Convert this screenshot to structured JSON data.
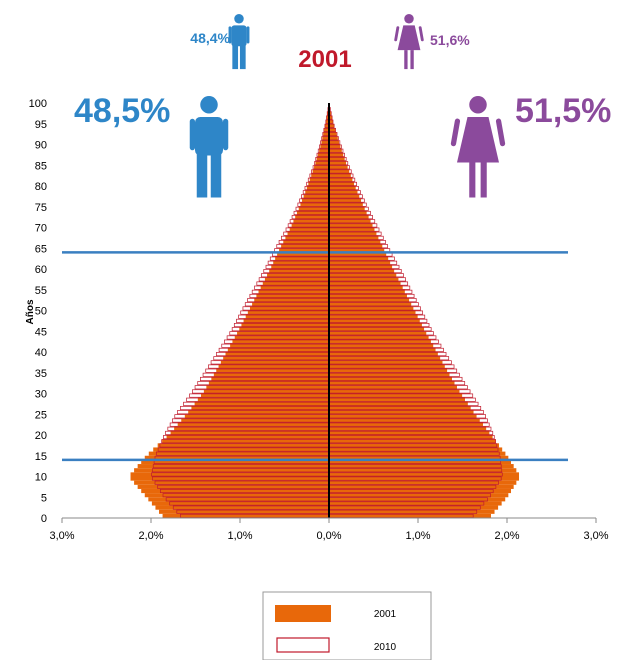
{
  "chart_data": {
    "type": "bar",
    "orientation": "horizontal-pyramid",
    "title": "2001",
    "ylabel": "Años",
    "x_ticks": [
      "3,0%",
      "2,0%",
      "1,0%",
      "0,0%",
      "1,0%",
      "2,0%",
      "3,0%"
    ],
    "y_ticks": [
      "100",
      "95",
      "90",
      "85",
      "80",
      "75",
      "70",
      "65",
      "60",
      "55",
      "50",
      "45",
      "40",
      "35",
      "30",
      "25",
      "20",
      "15",
      "10",
      "5",
      "0"
    ],
    "xlim": [
      -3,
      3
    ],
    "ylim": [
      0,
      100
    ],
    "reference_lines_age": [
      64,
      14
    ],
    "gender_labels": {
      "male_2001": "48,5%",
      "female_2001": "51,5%",
      "male_2010": "48,4%",
      "female_2010": "51,6%"
    },
    "series": [
      {
        "name": "2001",
        "color": "#e8680a",
        "age_groups": [
          0,
          5,
          10,
          15,
          20,
          25,
          30,
          35,
          40,
          45,
          50,
          55,
          60,
          65,
          70,
          75,
          80,
          85,
          90,
          95,
          100
        ],
        "male": [
          1.85,
          2.05,
          2.25,
          2.05,
          1.8,
          1.6,
          1.42,
          1.28,
          1.15,
          1.02,
          0.9,
          0.78,
          0.66,
          0.55,
          0.43,
          0.33,
          0.24,
          0.16,
          0.09,
          0.04,
          0.0
        ],
        "female": [
          1.8,
          2.0,
          2.15,
          2.0,
          1.82,
          1.64,
          1.48,
          1.34,
          1.21,
          1.08,
          0.96,
          0.84,
          0.72,
          0.61,
          0.5,
          0.39,
          0.29,
          0.2,
          0.12,
          0.05,
          0.0
        ]
      },
      {
        "name": "2010",
        "color": "#c0192b",
        "age_groups": [
          0,
          5,
          10,
          15,
          20,
          25,
          30,
          35,
          40,
          45,
          50,
          55,
          60,
          65,
          70,
          75,
          80,
          85,
          90,
          95,
          100
        ],
        "male": [
          1.65,
          1.85,
          2.0,
          1.95,
          1.85,
          1.72,
          1.55,
          1.4,
          1.25,
          1.1,
          0.98,
          0.85,
          0.72,
          0.6,
          0.47,
          0.36,
          0.26,
          0.17,
          0.1,
          0.04,
          0.0
        ],
        "female": [
          1.6,
          1.8,
          1.95,
          1.92,
          1.85,
          1.75,
          1.6,
          1.45,
          1.3,
          1.16,
          1.04,
          0.92,
          0.8,
          0.67,
          0.55,
          0.43,
          0.32,
          0.22,
          0.13,
          0.05,
          0.0
        ]
      }
    ],
    "legend": [
      "2001",
      "2010"
    ],
    "legend_position": "bottom-center",
    "colors": {
      "male": "#2e86c8",
      "female": "#8b4a9c",
      "title": "#c0192b",
      "fill_2001": "#e8680a",
      "outline_2010": "#c0192b",
      "reference_line": "#3a7fc1"
    }
  }
}
